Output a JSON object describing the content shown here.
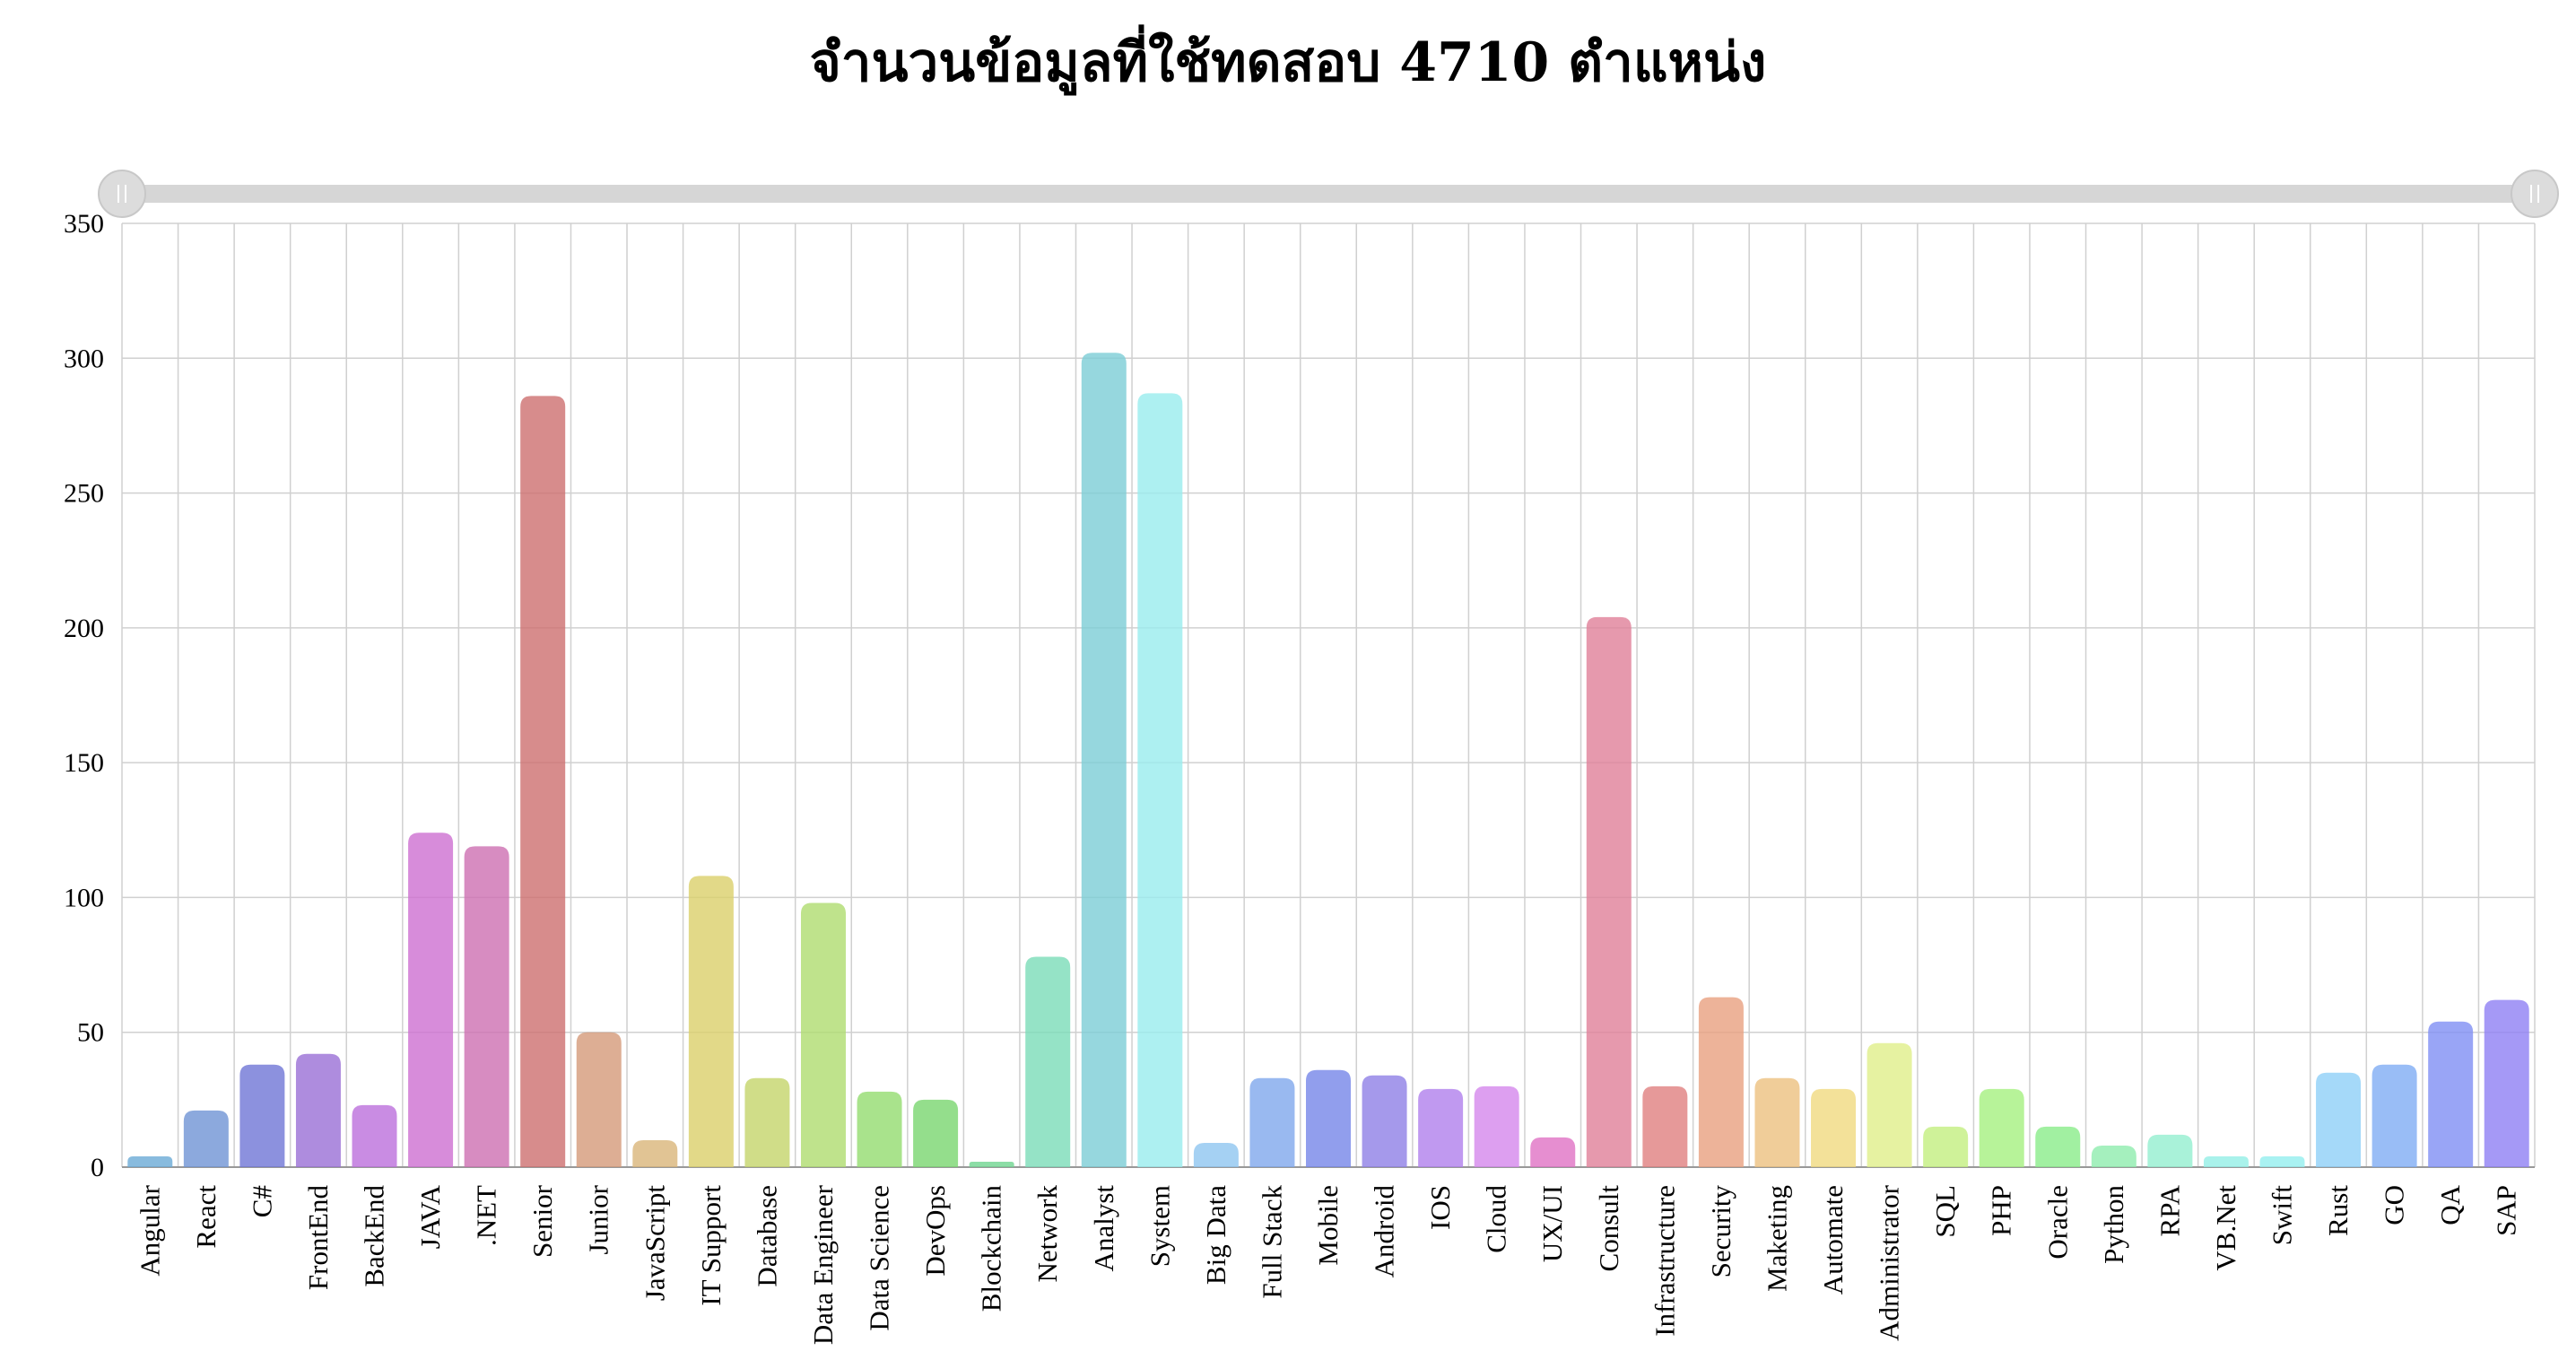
{
  "chart_data": {
    "type": "bar",
    "title": "จำนวนข้อมูลที่ใช้ทดสอบ 4710 ตำแหน่ง",
    "xlabel": "",
    "ylabel": "",
    "ylim": [
      0,
      350
    ],
    "yticks": [
      0,
      50,
      100,
      150,
      200,
      250,
      300,
      350
    ],
    "grid": true,
    "categories": [
      "Angular",
      "React",
      "C#",
      "FrontEnd",
      "BackEnd",
      "JAVA",
      ".NET",
      "Senior",
      "Junior",
      "JavaScript",
      "IT Support",
      "Database",
      "Data Engineer",
      "Data Science",
      "DevOps",
      "Blockchain",
      "Network",
      "Analyst",
      "System",
      "Big Data",
      "Full Stack",
      "Mobile",
      "Android",
      "IOS",
      "Cloud",
      "UX/UI",
      "Consult",
      "Infrastructure",
      "Security",
      "Maketing",
      "Automate",
      "Administrator",
      "SQL",
      "PHP",
      "Oracle",
      "Python",
      "RPA",
      "VB.Net",
      "Swift",
      "Rust",
      "GO",
      "QA",
      "SAP"
    ],
    "values": [
      4,
      21,
      38,
      42,
      23,
      124,
      119,
      286,
      50,
      10,
      108,
      33,
      98,
      28,
      25,
      2,
      78,
      302,
      287,
      9,
      33,
      36,
      34,
      29,
      30,
      11,
      204,
      30,
      63,
      33,
      29,
      46,
      15,
      29,
      15,
      8,
      12,
      4,
      4,
      35,
      38,
      54,
      62
    ],
    "colors": [
      "#6aaad6",
      "#6f93d4",
      "#6f75d6",
      "#9a6fd6",
      "#bc6fdc",
      "#cd6fd1",
      "#cd6fb1",
      "#cd6f6f",
      "#d49a79",
      "#d9b579",
      "#dbcf6a",
      "#c4d46a",
      "#afdc6f",
      "#93dc6f",
      "#79d66f",
      "#6fd490",
      "#7bdcb8",
      "#7ccdd6",
      "#98ecee",
      "#8fc5f0",
      "#80a8ec",
      "#7586e8",
      "#8f7fe6",
      "#b07fec",
      "#d487ec",
      "#e072c4",
      "#e07f99",
      "#e07f7f",
      "#e8a080",
      "#ecc07f",
      "#f0da7f",
      "#e0ef8a",
      "#c3ef7f",
      "#a5f07f",
      "#8aec8a",
      "#8fecae",
      "#93efcf",
      "#93efe6",
      "#93efef",
      "#8fcff7",
      "#7fadf4",
      "#7f8ef4",
      "#8f7ff4"
    ],
    "slider": {
      "start": 0,
      "end": 1
    }
  }
}
